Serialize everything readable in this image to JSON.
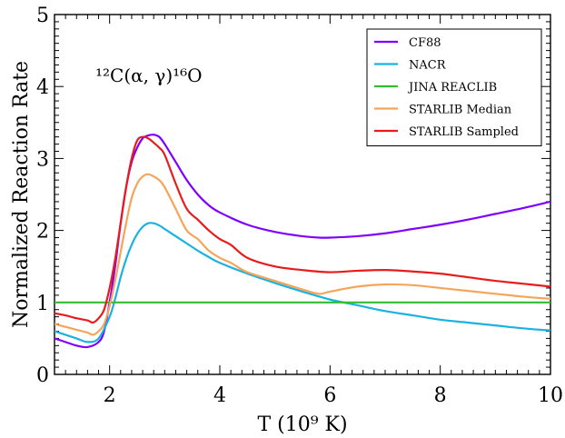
{
  "chart_data": {
    "type": "line",
    "xlabel": "T (10⁹ K)",
    "ylabel": "Normalized Reaction Rate",
    "annotation": "¹²C(α, γ)¹⁶O",
    "xlim": [
      1,
      10
    ],
    "ylim": [
      0,
      5
    ],
    "xticks": [
      2,
      4,
      6,
      8,
      10
    ],
    "yticks": [
      0,
      1,
      2,
      3,
      4,
      5
    ],
    "grid": false,
    "legend_position": "top-right",
    "series": [
      {
        "name": "CF88",
        "color": "#7f00ff",
        "x": [
          1.0,
          1.2,
          1.4,
          1.6,
          1.8,
          1.9,
          2.0,
          2.1,
          2.2,
          2.3,
          2.4,
          2.5,
          2.6,
          2.7,
          2.8,
          2.9,
          3.0,
          3.2,
          3.4,
          3.6,
          3.8,
          4.0,
          4.5,
          5.0,
          5.5,
          5.8,
          6.0,
          6.5,
          7.0,
          7.5,
          8.0,
          8.5,
          9.0,
          9.5,
          10.0
        ],
        "y": [
          0.5,
          0.45,
          0.4,
          0.38,
          0.45,
          0.6,
          1.0,
          1.5,
          2.1,
          2.6,
          2.95,
          3.15,
          3.28,
          3.32,
          3.33,
          3.3,
          3.2,
          2.95,
          2.7,
          2.5,
          2.35,
          2.25,
          2.08,
          1.98,
          1.92,
          1.9,
          1.9,
          1.92,
          1.96,
          2.02,
          2.08,
          2.15,
          2.23,
          2.31,
          2.4
        ]
      },
      {
        "name": "NACR",
        "color": "#1ab2e0",
        "x": [
          1.0,
          1.2,
          1.4,
          1.6,
          1.8,
          2.0,
          2.1,
          2.2,
          2.3,
          2.4,
          2.5,
          2.6,
          2.7,
          2.8,
          2.9,
          3.0,
          3.2,
          3.4,
          3.6,
          3.8,
          4.0,
          4.5,
          5.0,
          5.5,
          6.0,
          6.5,
          7.0,
          7.5,
          8.0,
          8.5,
          9.0,
          9.5,
          10.0
        ],
        "y": [
          0.6,
          0.55,
          0.5,
          0.45,
          0.5,
          0.8,
          1.05,
          1.35,
          1.6,
          1.8,
          1.95,
          2.05,
          2.1,
          2.1,
          2.07,
          2.02,
          1.92,
          1.82,
          1.72,
          1.63,
          1.55,
          1.4,
          1.27,
          1.15,
          1.04,
          0.96,
          0.88,
          0.82,
          0.76,
          0.72,
          0.68,
          0.64,
          0.61
        ]
      },
      {
        "name": "JINA REACLIB",
        "color": "#33bb33",
        "x": [
          1.0,
          10.0
        ],
        "y": [
          1.0,
          1.0
        ]
      },
      {
        "name": "STARLIB Median",
        "color": "#f5a55a",
        "x": [
          1.0,
          1.2,
          1.4,
          1.6,
          1.7,
          1.8,
          1.9,
          2.0,
          2.1,
          2.2,
          2.3,
          2.4,
          2.5,
          2.6,
          2.7,
          2.8,
          2.9,
          3.0,
          3.2,
          3.4,
          3.6,
          3.8,
          4.0,
          4.2,
          4.5,
          5.0,
          5.5,
          5.8,
          6.0,
          6.5,
          7.0,
          7.5,
          8.0,
          8.5,
          9.0,
          9.5,
          10.0
        ],
        "y": [
          0.7,
          0.66,
          0.62,
          0.58,
          0.55,
          0.6,
          0.7,
          0.95,
          1.3,
          1.7,
          2.1,
          2.45,
          2.65,
          2.75,
          2.78,
          2.75,
          2.7,
          2.6,
          2.3,
          2.0,
          1.88,
          1.72,
          1.62,
          1.55,
          1.42,
          1.3,
          1.18,
          1.12,
          1.15,
          1.22,
          1.25,
          1.24,
          1.2,
          1.16,
          1.12,
          1.08,
          1.05
        ]
      },
      {
        "name": "STARLIB Sampled",
        "color": "#e81c1c",
        "x": [
          1.0,
          1.2,
          1.4,
          1.6,
          1.7,
          1.8,
          1.9,
          2.0,
          2.1,
          2.2,
          2.3,
          2.4,
          2.5,
          2.6,
          2.7,
          2.8,
          2.9,
          3.0,
          3.2,
          3.4,
          3.6,
          3.8,
          4.0,
          4.2,
          4.5,
          5.0,
          5.5,
          6.0,
          6.5,
          7.0,
          7.5,
          8.0,
          8.5,
          9.0,
          9.5,
          10.0
        ],
        "y": [
          0.85,
          0.82,
          0.78,
          0.75,
          0.72,
          0.78,
          0.9,
          1.2,
          1.6,
          2.1,
          2.6,
          3.0,
          3.25,
          3.3,
          3.28,
          3.22,
          3.15,
          3.05,
          2.65,
          2.3,
          2.15,
          2.0,
          1.88,
          1.8,
          1.62,
          1.5,
          1.45,
          1.42,
          1.44,
          1.45,
          1.43,
          1.4,
          1.35,
          1.3,
          1.26,
          1.22
        ]
      }
    ]
  }
}
